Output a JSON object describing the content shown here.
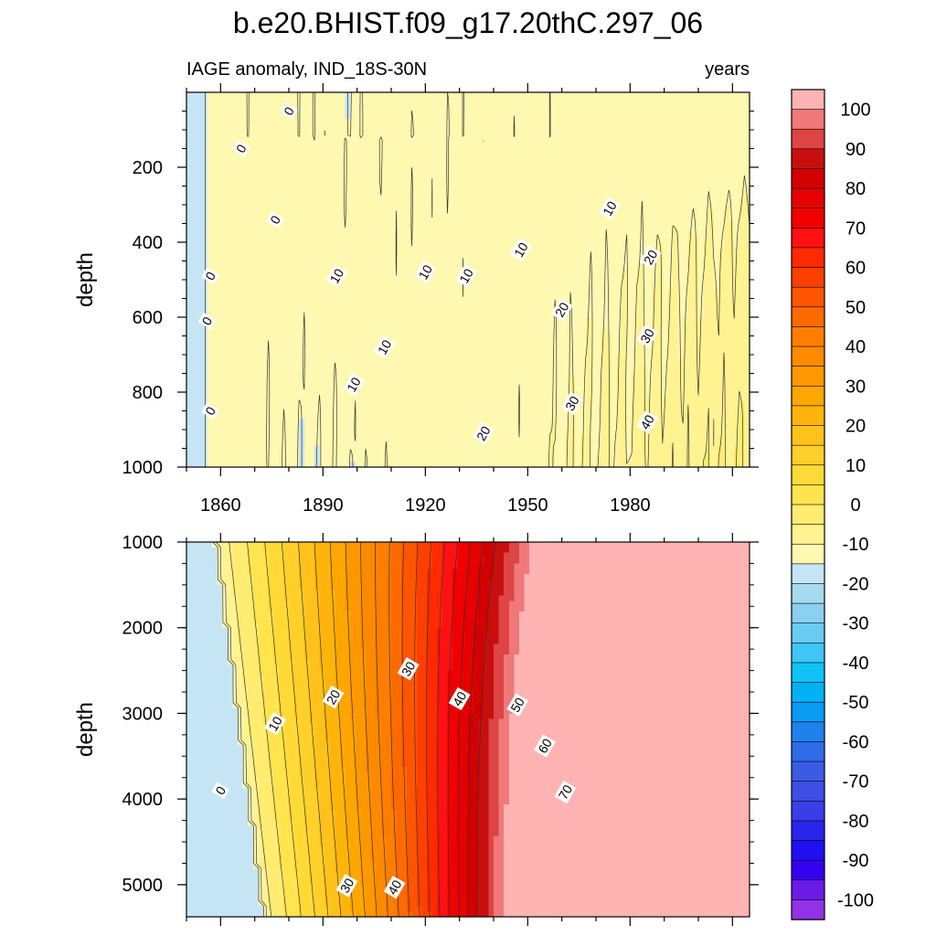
{
  "figure": {
    "title": "b.e20.BHIST.f09_g17.20thC.297_06",
    "subtitle_left": "IAGE anomaly, IND_18S-30N",
    "subtitle_right": "years"
  },
  "chart_data": [
    {
      "type": "heatmap",
      "panel": "upper",
      "ylabel": "depth",
      "xlim": [
        1850,
        2015
      ],
      "ylim": [
        1000,
        0
      ],
      "x_ticks": [
        1860,
        1890,
        1920,
        1950,
        1980
      ],
      "y_ticks": [
        200,
        400,
        600,
        800,
        1000
      ],
      "contour_interval": 5,
      "contour_labels": [
        {
          "text": "0",
          "x": 1880,
          "y": 50
        },
        {
          "text": "0",
          "x": 1866,
          "y": 150
        },
        {
          "text": "0",
          "x": 1876,
          "y": 340
        },
        {
          "text": "0",
          "x": 1857,
          "y": 490
        },
        {
          "text": "0",
          "x": 1856,
          "y": 610
        },
        {
          "text": "0",
          "x": 1857,
          "y": 850
        },
        {
          "text": "10",
          "x": 1894,
          "y": 490
        },
        {
          "text": "10",
          "x": 1920,
          "y": 480
        },
        {
          "text": "10",
          "x": 1932,
          "y": 490
        },
        {
          "text": "10",
          "x": 1948,
          "y": 420
        },
        {
          "text": "10",
          "x": 1974,
          "y": 310
        },
        {
          "text": "10",
          "x": 1908,
          "y": 680
        },
        {
          "text": "10",
          "x": 1899,
          "y": 780
        },
        {
          "text": "20",
          "x": 1986,
          "y": 440
        },
        {
          "text": "20",
          "x": 1960,
          "y": 580
        },
        {
          "text": "20",
          "x": 1937,
          "y": 910
        },
        {
          "text": "30",
          "x": 1985,
          "y": 650
        },
        {
          "text": "30",
          "x": 1963,
          "y": 830
        },
        {
          "text": "40",
          "x": 1985,
          "y": 880
        }
      ]
    },
    {
      "type": "heatmap",
      "panel": "lower",
      "ylabel": "depth",
      "xlim": [
        1850,
        2015
      ],
      "ylim": [
        5375,
        1000
      ],
      "y_ticks": [
        1000,
        2000,
        3000,
        4000,
        5000
      ],
      "contour_interval": 5,
      "contour_labels": [
        {
          "text": "0",
          "x": 1860,
          "y": 3900
        },
        {
          "text": "10",
          "x": 1876,
          "y": 3120
        },
        {
          "text": "20",
          "x": 1893,
          "y": 2810
        },
        {
          "text": "30",
          "x": 1915,
          "y": 2480
        },
        {
          "text": "40",
          "x": 1930,
          "y": 2830
        },
        {
          "text": "50",
          "x": 1947,
          "y": 2900
        },
        {
          "text": "60",
          "x": 1955,
          "y": 3380
        },
        {
          "text": "70",
          "x": 1961,
          "y": 3920
        },
        {
          "text": "30",
          "x": 1897,
          "y": 5010
        },
        {
          "text": "40",
          "x": 1911,
          "y": 5030
        }
      ]
    }
  ],
  "colorbar": {
    "labels": [
      "100",
      "90",
      "80",
      "70",
      "60",
      "50",
      "40",
      "30",
      "20",
      "10",
      "0",
      "-10",
      "-20",
      "-30",
      "-40",
      "-50",
      "-60",
      "-70",
      "-80",
      "-90",
      "-100"
    ],
    "colors_top_to_bottom": [
      "#FFB3B3",
      "#F07878",
      "#DE4444",
      "#C80F0F",
      "#D20000",
      "#E60000",
      "#F00000",
      "#FF1111",
      "#FF2A00",
      "#FF3F00",
      "#FF5500",
      "#FF6A00",
      "#FF7D00",
      "#FF8A00",
      "#FF9800",
      "#FFA600",
      "#FFB40B",
      "#FFC21A",
      "#FFCF2A",
      "#FFDA36",
      "#FFE44E",
      "#FFEC70",
      "#FFF290",
      "#FFF8B0",
      "#C5E5F5",
      "#A6DAF1",
      "#8AD0F0",
      "#6ACBF2",
      "#3FC6F5",
      "#11C2F6",
      "#00B2F5",
      "#0A9BF3",
      "#1E82EE",
      "#2E6CEA",
      "#3A5CE4",
      "#3D4EE4",
      "#3A3EE8",
      "#2B24EC",
      "#1E10F2",
      "#3500F0",
      "#6B1BE8",
      "#9132E8"
    ]
  }
}
